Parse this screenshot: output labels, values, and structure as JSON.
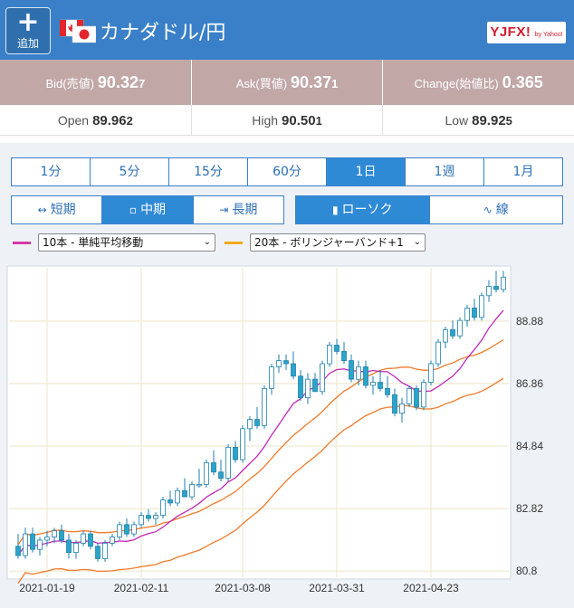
{
  "header": {
    "add_label": "追加",
    "pair_title": "カナダドル/円",
    "logo_text": "YJFX!",
    "logo_sub": "by Yahoo!"
  },
  "quote": {
    "bid_label": "Bid(売値)",
    "bid_main": "90.32",
    "bid_pip": "7",
    "ask_label": "Ask(買値)",
    "ask_main": "90.37",
    "ask_pip": "1",
    "change_label": "Change(始値比)",
    "change_value": "0.365"
  },
  "stats": {
    "open_label": "Open",
    "open_main": "89.96",
    "open_pip": "2",
    "high_label": "High",
    "high_main": "90.50",
    "high_pip": "1",
    "low_label": "Low",
    "low_main": "89.92",
    "low_pip": "5"
  },
  "timeframes": [
    "1分",
    "5分",
    "15分",
    "60分",
    "1日",
    "1週",
    "1月"
  ],
  "active_timeframe": "1日",
  "ranges": [
    "短期",
    "中期",
    "長期"
  ],
  "active_range": "中期",
  "chart_types": [
    "ローソク",
    "線"
  ],
  "active_chart_type": "ローソク",
  "indicators": [
    {
      "label": "10本 - 単純平均移動",
      "color": "#d63aa8"
    },
    {
      "label": "20本 - ボリンジャーバンド+1",
      "color": "#f2a81d"
    }
  ],
  "colors": {
    "header": "#3a80c8",
    "accent": "#2f8ad6",
    "up_candle": "#ffffff",
    "down_candle": "#2aa5c8",
    "sma": "#c02ab8",
    "bollinger": "#f07a2a"
  },
  "chart_data": {
    "type": "candlestick",
    "x_tick_labels": [
      "2021-01-19",
      "2021-02-11",
      "2021-03-08",
      "2021-03-31",
      "2021-04-23"
    ],
    "y_tick_labels": [
      "88.88",
      "86.86",
      "84.84",
      "82.82",
      "80.8"
    ],
    "ylim": [
      80.6,
      90.6
    ],
    "ohlc": [
      [
        81.6,
        82.0,
        81.2,
        81.3
      ],
      [
        81.3,
        82.2,
        81.2,
        82.0
      ],
      [
        82.0,
        82.2,
        81.4,
        81.5
      ],
      [
        81.5,
        81.9,
        81.3,
        81.8
      ],
      [
        81.8,
        82.1,
        81.6,
        81.9
      ],
      [
        81.9,
        82.2,
        81.7,
        82.1
      ],
      [
        82.1,
        82.3,
        81.7,
        81.8
      ],
      [
        81.8,
        82.0,
        81.2,
        81.4
      ],
      [
        81.4,
        81.8,
        81.2,
        81.7
      ],
      [
        81.7,
        82.1,
        81.6,
        82.0
      ],
      [
        82.0,
        82.1,
        81.5,
        81.6
      ],
      [
        81.6,
        81.7,
        81.1,
        81.2
      ],
      [
        81.2,
        81.8,
        81.1,
        81.7
      ],
      [
        81.7,
        82.0,
        81.6,
        81.9
      ],
      [
        81.9,
        82.4,
        81.8,
        82.3
      ],
      [
        82.3,
        82.5,
        81.9,
        82.0
      ],
      [
        82.0,
        82.4,
        81.9,
        82.3
      ],
      [
        82.3,
        82.7,
        82.2,
        82.6
      ],
      [
        82.6,
        82.8,
        82.4,
        82.5
      ],
      [
        82.5,
        82.7,
        82.3,
        82.6
      ],
      [
        82.6,
        83.2,
        82.5,
        83.1
      ],
      [
        83.1,
        83.4,
        82.9,
        83.0
      ],
      [
        83.0,
        83.5,
        82.9,
        83.4
      ],
      [
        83.4,
        83.8,
        83.2,
        83.2
      ],
      [
        83.2,
        83.7,
        83.1,
        83.6
      ],
      [
        83.6,
        84.1,
        83.5,
        83.6
      ],
      [
        83.6,
        84.4,
        83.5,
        84.3
      ],
      [
        84.3,
        84.7,
        83.9,
        84.0
      ],
      [
        84.0,
        84.4,
        83.7,
        83.8
      ],
      [
        83.8,
        84.9,
        83.7,
        84.8
      ],
      [
        84.8,
        85.0,
        84.3,
        84.4
      ],
      [
        84.4,
        85.5,
        84.3,
        85.4
      ],
      [
        85.4,
        85.8,
        85.0,
        85.7
      ],
      [
        85.7,
        86.1,
        85.4,
        85.5
      ],
      [
        85.5,
        86.8,
        85.4,
        86.7
      ],
      [
        86.7,
        87.5,
        86.5,
        87.4
      ],
      [
        87.4,
        87.8,
        87.2,
        87.6
      ],
      [
        87.6,
        87.8,
        87.3,
        87.5
      ],
      [
        87.5,
        87.9,
        87.0,
        87.1
      ],
      [
        87.1,
        87.3,
        86.3,
        86.4
      ],
      [
        86.4,
        87.2,
        86.2,
        87.0
      ],
      [
        87.0,
        87.2,
        86.6,
        86.6
      ],
      [
        86.6,
        87.6,
        86.5,
        87.5
      ],
      [
        87.5,
        88.2,
        87.4,
        88.1
      ],
      [
        88.1,
        88.3,
        87.8,
        87.9
      ],
      [
        87.9,
        88.2,
        87.5,
        87.6
      ],
      [
        87.6,
        87.8,
        86.9,
        87.0
      ],
      [
        87.0,
        87.6,
        86.8,
        87.4
      ],
      [
        87.4,
        87.6,
        86.7,
        86.8
      ],
      [
        86.8,
        87.1,
        86.5,
        86.9
      ],
      [
        86.9,
        87.3,
        86.6,
        86.7
      ],
      [
        86.7,
        87.1,
        86.4,
        86.5
      ],
      [
        86.5,
        86.7,
        85.8,
        85.9
      ],
      [
        85.9,
        86.4,
        85.6,
        86.2
      ],
      [
        86.2,
        86.8,
        86.1,
        86.7
      ],
      [
        86.7,
        86.8,
        86.0,
        86.1
      ],
      [
        86.1,
        87.0,
        86.0,
        86.9
      ],
      [
        86.9,
        87.6,
        86.8,
        87.5
      ],
      [
        87.5,
        88.3,
        87.4,
        88.2
      ],
      [
        88.2,
        88.7,
        88.0,
        88.6
      ],
      [
        88.6,
        88.9,
        88.3,
        88.4
      ],
      [
        88.4,
        89.0,
        88.3,
        88.9
      ],
      [
        88.9,
        89.4,
        88.7,
        89.3
      ],
      [
        89.3,
        89.6,
        88.9,
        89.0
      ],
      [
        89.0,
        89.8,
        88.9,
        89.7
      ],
      [
        89.7,
        90.2,
        89.5,
        90.0
      ],
      [
        90.0,
        90.5,
        89.8,
        89.9
      ],
      [
        89.9,
        90.5,
        89.8,
        90.3
      ]
    ]
  }
}
